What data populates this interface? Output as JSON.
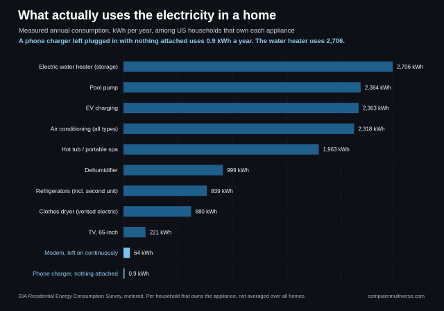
{
  "chart_data": {
    "type": "bar",
    "orientation": "horizontal",
    "title": "What actually uses the electricity in a home",
    "subtitle": "Measured annual consumption, kWh per year, among US households that own each appliance",
    "callout": "A phone charger left plugged in with nothing attached uses 0.9 kWh a year. The water heater uses 2,706.",
    "categories": [
      "Electric water heater (storage)",
      "Pool pump",
      "EV charging",
      "Air conditioning (all types)",
      "Hot tub / portable spa",
      "Dehumidifier",
      "Refrigerators (incl. second unit)",
      "Clothes dryer (vented electric)",
      "TV, 65-inch",
      "Modem, left on continuously",
      "Phone charger, nothing attached"
    ],
    "values": [
      2706,
      2384,
      2363,
      2318,
      1963,
      999,
      839,
      680,
      221,
      64,
      0.9
    ],
    "value_labels": [
      "2,706 kWh",
      "2,384 kWh",
      "2,363 kWh",
      "2,318 kWh",
      "1,963 kWh",
      "999 kWh",
      "839 kWh",
      "680 kWh",
      "221 kWh",
      "64 kWh",
      "0.9 kWh"
    ],
    "xlim": [
      0,
      2706
    ],
    "grid": true,
    "colors": {
      "bar": "#1f5f8b",
      "highlight_bar": "#7cc0ec",
      "highlight_label": "#8ec7ee",
      "label": "#e6e9ee"
    },
    "highlighted": [
      "Modem, left on continuously",
      "Phone charger, nothing attached"
    ],
    "source": "EIA Residential Energy Consumption Survey, metered. Per household that owns the appliance, not averaged over all homes.",
    "credit": "computermultiverse.com"
  }
}
